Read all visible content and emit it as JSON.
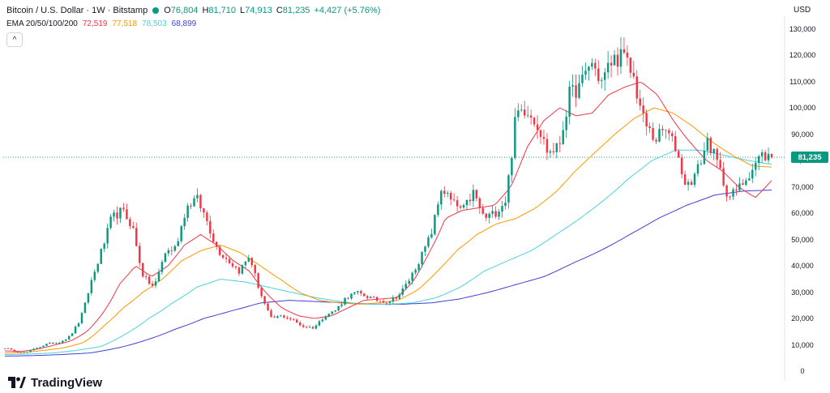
{
  "header": {
    "title": "Bitcoin / U.S. Dollar · 1W · Bitstamp",
    "open_label": "O",
    "open_value": "76,804",
    "high_label": "H",
    "high_value": "81,710",
    "low_label": "L",
    "low_value": "74,913",
    "close_label": "C",
    "close_value": "81,235",
    "change_value": "+4,427 (+5.76%)"
  },
  "ema": {
    "label": "EMA 20/50/100/200",
    "values": [
      "72,519",
      "77,518",
      "78,503",
      "68,899"
    ]
  },
  "currency": "USD",
  "logo_text": "TradingView",
  "collapse_glyph": "^",
  "last_price_tag": "81,235",
  "colors": {
    "up": "#089981",
    "down": "#f23645",
    "ema20": "#f23645",
    "ema50": "#ff9800",
    "ema100": "#4dd0e1",
    "ema200": "#3f3fd9"
  },
  "chart_data": {
    "type": "candlestick",
    "series_description": "Weekly OHLC candles with 4 EMA overlays",
    "y_axis": {
      "ticks": [
        0,
        10000,
        20000,
        30000,
        40000,
        50000,
        60000,
        70000,
        80000,
        90000,
        100000,
        110000,
        120000,
        130000
      ],
      "tick_labels": [
        "0",
        "10,000",
        "20,000",
        "30,000",
        "40,000",
        "50,000",
        "60,000",
        "70,000",
        "80,000",
        "90,000",
        "100,000",
        "110,000",
        "120,000",
        "130,000"
      ],
      "scale": "log",
      "range": [
        0,
        130000
      ],
      "side": "right"
    },
    "grid": "off",
    "last_price": 81235,
    "price_anchors": [
      9000,
      7500,
      7200,
      9000,
      10500,
      11000,
      13000,
      19000,
      33000,
      45000,
      58000,
      61000,
      55000,
      36000,
      32000,
      45000,
      47000,
      62000,
      66000,
      57000,
      46000,
      42000,
      38000,
      44000,
      30000,
      20000,
      21000,
      19500,
      17000,
      16500,
      21000,
      23000,
      28000,
      30000,
      28500,
      27000,
      26500,
      29000,
      35000,
      43000,
      52000,
      70000,
      64000,
      61000,
      68000,
      58000,
      60000,
      65000,
      98000,
      100000,
      94000,
      83000,
      85000,
      105000,
      108000,
      118000,
      110000,
      118000,
      120000,
      112000,
      95000,
      88000,
      92000,
      85000,
      70000,
      76000,
      88000,
      78000,
      66000,
      70000,
      76000,
      82000,
      81235
    ],
    "ema20_anchors": [
      7800,
      7600,
      8500,
      10000,
      11500,
      15000,
      22000,
      33000,
      40000,
      36000,
      40000,
      48000,
      52000,
      48000,
      42000,
      38000,
      30000,
      24000,
      21000,
      20000,
      21000,
      24000,
      27000,
      27500,
      28000,
      34000,
      45000,
      58000,
      61000,
      62000,
      63000,
      70000,
      85000,
      95000,
      100000,
      97000,
      98000,
      105000,
      108000,
      110000,
      105000,
      95000,
      87000,
      80000,
      76000,
      70000,
      66000,
      72519
    ],
    "ema50_anchors": [
      7000,
      7200,
      8000,
      9000,
      11000,
      17000,
      24000,
      30000,
      35000,
      42000,
      46000,
      48000,
      45000,
      40000,
      35000,
      30000,
      27000,
      26000,
      25500,
      26000,
      27000,
      31000,
      38000,
      46000,
      52000,
      56000,
      58000,
      62000,
      68000,
      76000,
      83000,
      90000,
      96000,
      100000,
      98000,
      93000,
      87000,
      82000,
      78000,
      77518
    ],
    "ema100_anchors": [
      6400,
      6600,
      7000,
      8000,
      9500,
      14000,
      20000,
      26000,
      32000,
      35000,
      34000,
      32000,
      30000,
      28000,
      26500,
      25500,
      25500,
      26000,
      28000,
      32000,
      38000,
      42000,
      46000,
      52000,
      58000,
      65000,
      73000,
      80000,
      84000,
      84000,
      82000,
      80000,
      78503
    ],
    "ema200_anchors": [
      5800,
      6000,
      6400,
      7000,
      9000,
      12000,
      16000,
      20000,
      23000,
      26000,
      27000,
      26500,
      26000,
      25500,
      25500,
      26000,
      27500,
      30000,
      33000,
      36000,
      41000,
      46000,
      52000,
      58000,
      63000,
      67000,
      68500,
      68899
    ]
  }
}
